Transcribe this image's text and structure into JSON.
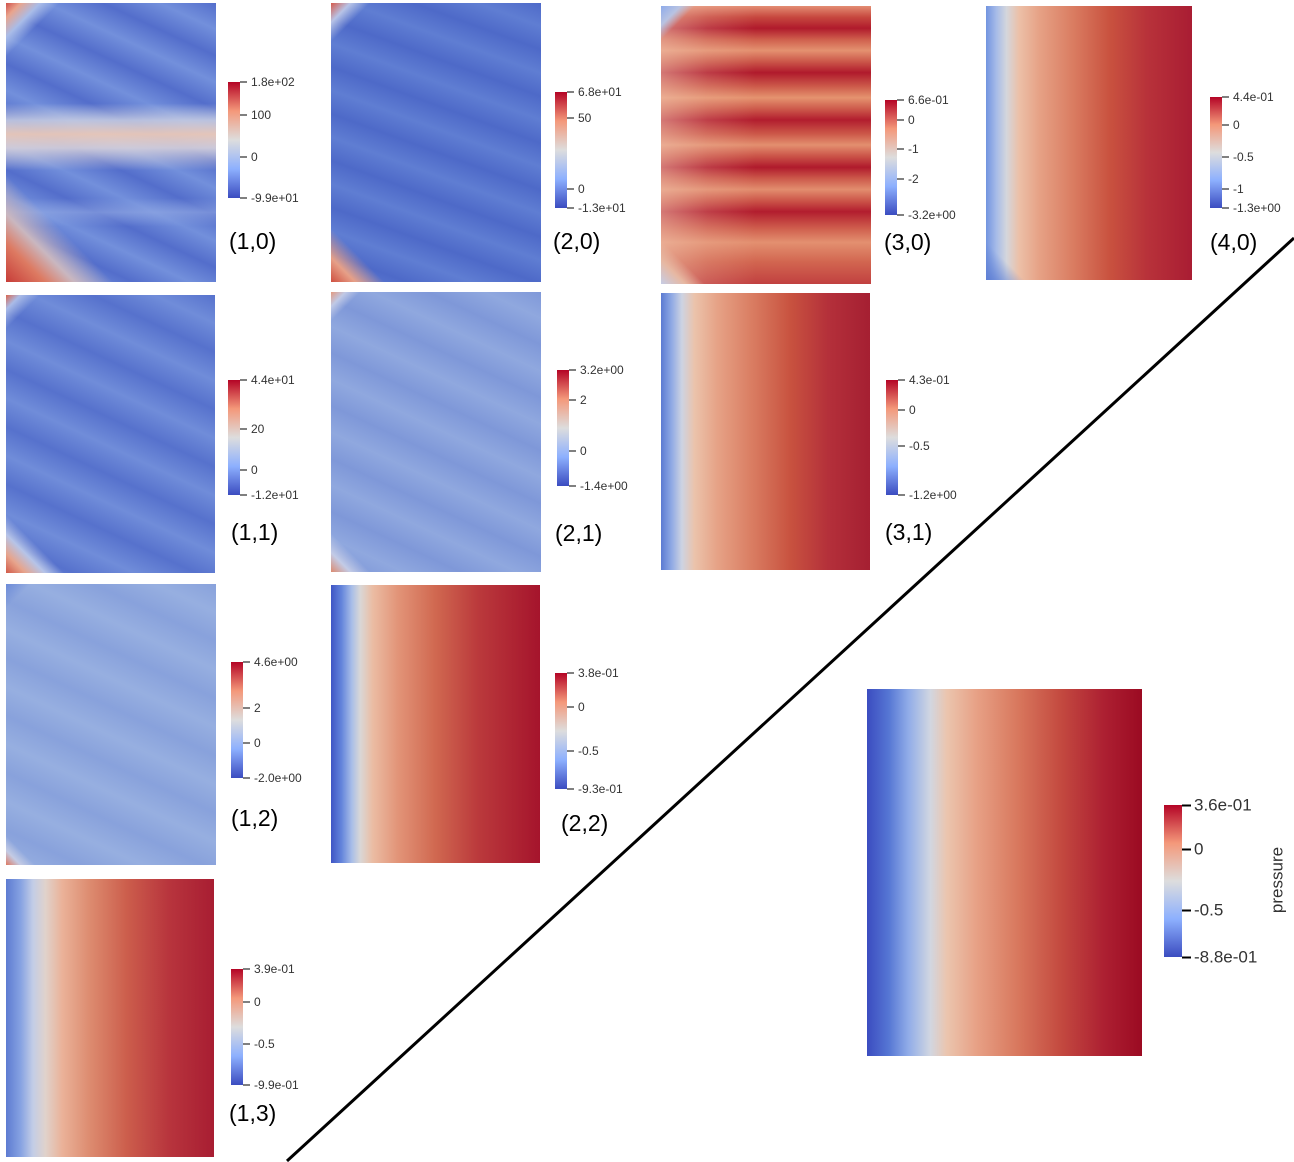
{
  "colors": {
    "low": "#3b4cc0",
    "low_mid": "#8db0fe",
    "mid": "#dddddd",
    "high_mid": "#f4987a",
    "high": "#b40426",
    "divider_line": "#000000"
  },
  "chart_data": [
    {
      "type": "heatmap",
      "title": "(1,0)",
      "colorbar": {
        "max": 180,
        "min": -99,
        "ticks": [
          {
            "value": 180,
            "label": "1.8e+02"
          },
          {
            "value": 100,
            "label": "100"
          },
          {
            "value": 0,
            "label": "0"
          },
          {
            "value": -99,
            "label": "-9.9e+01"
          }
        ]
      }
    },
    {
      "type": "heatmap",
      "title": "(2,0)",
      "colorbar": {
        "max": 68,
        "min": -13,
        "ticks": [
          {
            "value": 68,
            "label": "6.8e+01"
          },
          {
            "value": 50,
            "label": "50"
          },
          {
            "value": 0,
            "label": "0"
          },
          {
            "value": -13,
            "label": "-1.3e+01"
          }
        ]
      }
    },
    {
      "type": "heatmap",
      "title": "(3,0)",
      "colorbar": {
        "max": 0.66,
        "min": -3.2,
        "ticks": [
          {
            "value": 0.66,
            "label": "6.6e-01"
          },
          {
            "value": 0,
            "label": "0"
          },
          {
            "value": -1,
            "label": "-1"
          },
          {
            "value": -2,
            "label": "-2"
          },
          {
            "value": -3.2,
            "label": "-3.2e+00"
          }
        ]
      }
    },
    {
      "type": "heatmap",
      "title": "(4,0)",
      "colorbar": {
        "max": 0.44,
        "min": -1.3,
        "ticks": [
          {
            "value": 0.44,
            "label": "4.4e-01"
          },
          {
            "value": 0,
            "label": "0"
          },
          {
            "value": -0.5,
            "label": "-0.5"
          },
          {
            "value": -1,
            "label": "-1"
          },
          {
            "value": -1.3,
            "label": "-1.3e+00"
          }
        ]
      }
    },
    {
      "type": "heatmap",
      "title": "(1,1)",
      "colorbar": {
        "max": 44,
        "min": -12,
        "ticks": [
          {
            "value": 44,
            "label": "4.4e+01"
          },
          {
            "value": 20,
            "label": "20"
          },
          {
            "value": 0,
            "label": "0"
          },
          {
            "value": -12,
            "label": "-1.2e+01"
          }
        ]
      }
    },
    {
      "type": "heatmap",
      "title": "(2,1)",
      "colorbar": {
        "max": 3.2,
        "min": -1.4,
        "ticks": [
          {
            "value": 3.2,
            "label": "3.2e+00"
          },
          {
            "value": 2,
            "label": "2"
          },
          {
            "value": 0,
            "label": "0"
          },
          {
            "value": -1.4,
            "label": "-1.4e+00"
          }
        ]
      }
    },
    {
      "type": "heatmap",
      "title": "(3,1)",
      "colorbar": {
        "max": 0.43,
        "min": -1.2,
        "ticks": [
          {
            "value": 0.43,
            "label": "4.3e-01"
          },
          {
            "value": 0,
            "label": "0"
          },
          {
            "value": -0.5,
            "label": "-0.5"
          },
          {
            "value": -1.2,
            "label": "-1.2e+00"
          }
        ]
      }
    },
    {
      "type": "heatmap",
      "title": "(1,2)",
      "colorbar": {
        "max": 4.6,
        "min": -2.0,
        "ticks": [
          {
            "value": 4.6,
            "label": "4.6e+00"
          },
          {
            "value": 2,
            "label": "2"
          },
          {
            "value": 0,
            "label": "0"
          },
          {
            "value": -2.0,
            "label": "-2.0e+00"
          }
        ]
      }
    },
    {
      "type": "heatmap",
      "title": "(2,2)",
      "colorbar": {
        "max": 0.38,
        "min": -0.93,
        "ticks": [
          {
            "value": 0.38,
            "label": "3.8e-01"
          },
          {
            "value": 0,
            "label": "0"
          },
          {
            "value": -0.5,
            "label": "-0.5"
          },
          {
            "value": -0.93,
            "label": "-9.3e-01"
          }
        ]
      }
    },
    {
      "type": "heatmap",
      "title": "(1,3)",
      "colorbar": {
        "max": 0.39,
        "min": -0.99,
        "ticks": [
          {
            "value": 0.39,
            "label": "3.9e-01"
          },
          {
            "value": 0,
            "label": "0"
          },
          {
            "value": -0.5,
            "label": "-0.5"
          },
          {
            "value": -0.99,
            "label": "-9.9e-01"
          }
        ]
      }
    },
    {
      "type": "heatmap",
      "colorbar": {
        "title": "pressure",
        "max": 0.36,
        "min": -0.88,
        "ticks": [
          {
            "value": 0.36,
            "label": "3.6e-01"
          },
          {
            "value": 0,
            "label": "0"
          },
          {
            "value": -0.5,
            "label": "-0.5"
          },
          {
            "value": -0.88,
            "label": "-8.8e-01"
          }
        ]
      }
    }
  ]
}
